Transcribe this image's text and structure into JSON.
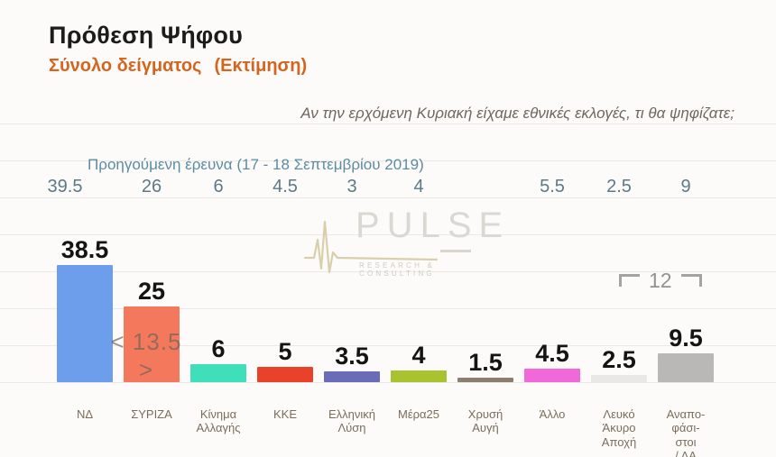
{
  "header": {
    "title": "Πρόθεση Ψήφου",
    "subtitle": "Σύνολο δείγματος",
    "subtitle_note": "(Εκτίμηση)",
    "question": "Αν την ερχόμενη Κυριακή είχαμε εθνικές εκλογές, τι θα ψηφίζατε;"
  },
  "previous_survey": {
    "label": "Προηγούμενη έρευνα (17 - 18 Σεπτεμβρίου 2019)"
  },
  "watermark": {
    "brand": "PULSE",
    "tagline": "RESEARCH & CONSULTING"
  },
  "annotations": {
    "lead_gap": "< 13.5 >",
    "undecided_total": "12"
  },
  "colors": {
    "subtitle_accent": "#d4651e",
    "previous_survey_text": "#5b8ca0",
    "value_label": "#141414",
    "axis_label": "#7b6d5c"
  },
  "chart_data": {
    "type": "bar",
    "title": "Πρόθεση Ψήφου — Σύνολο δείγματος (Εκτίμηση)",
    "xlabel": "",
    "ylabel": "",
    "ylim": [
      0,
      45
    ],
    "grid": true,
    "categories": [
      "ΝΔ",
      "ΣΥΡΙΖΑ",
      "Κίνημα Αλλαγής",
      "ΚΚΕ",
      "Ελληνική Λύση",
      "Μέρα25",
      "Χρυσή Αυγή",
      "Άλλο",
      "Λευκό Άκυρο Αποχή",
      "Αναποφάσιστοι / ΔΑ"
    ],
    "values": [
      38.5,
      25,
      6,
      5,
      3.5,
      4,
      1.5,
      4.5,
      2.5,
      9.5
    ],
    "previous_values": [
      39.5,
      26,
      6,
      4.5,
      3,
      4,
      null,
      5.5,
      2.5,
      9
    ],
    "parties": [
      {
        "label_lines": [
          "ΝΔ"
        ],
        "value": 38.5,
        "value_label": "38.5",
        "previous": "39.5",
        "color": "#6d9eec"
      },
      {
        "label_lines": [
          "ΣΥΡΙΖΑ"
        ],
        "value": 25,
        "value_label": "25",
        "previous": "26",
        "color": "#f4795c"
      },
      {
        "label_lines": [
          "Κίνημα",
          "Αλλαγής"
        ],
        "value": 6,
        "value_label": "6",
        "previous": "6",
        "color": "#3fdfba"
      },
      {
        "label_lines": [
          "ΚΚΕ"
        ],
        "value": 5,
        "value_label": "5",
        "previous": "4.5",
        "color": "#e8432a"
      },
      {
        "label_lines": [
          "Ελληνική",
          "Λύση"
        ],
        "value": 3.5,
        "value_label": "3.5",
        "previous": "3",
        "color": "#6a6cb7"
      },
      {
        "label_lines": [
          "Μέρα25"
        ],
        "value": 4,
        "value_label": "4",
        "previous": "4",
        "color": "#a9c32e"
      },
      {
        "label_lines": [
          "Χρυσή",
          "Αυγή"
        ],
        "value": 1.5,
        "value_label": "1.5",
        "previous": "",
        "color": "#8d7e6f"
      },
      {
        "label_lines": [
          "Άλλο"
        ],
        "value": 4.5,
        "value_label": "4.5",
        "previous": "5.5",
        "color": "#f168d9"
      },
      {
        "label_lines": [
          "Λευκό",
          "Άκυρο",
          "Αποχή"
        ],
        "value": 2.5,
        "value_label": "2.5",
        "previous": "2.5",
        "color": "#e9e8e6"
      },
      {
        "label_lines": [
          "Αναπο-",
          "φάσι-",
          "στοι",
          "/ ΔΑ"
        ],
        "value": 9.5,
        "value_label": "9.5",
        "previous": "9",
        "color": "#b9b8b6"
      }
    ]
  }
}
